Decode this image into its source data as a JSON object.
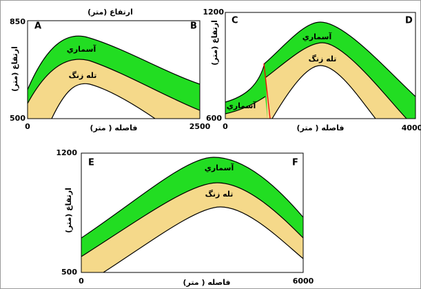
{
  "panels": [
    {
      "title": "ارتفاع (متر)",
      "y_label": "ارتفاع (متر)",
      "x_label": "فاصله ( متر)",
      "y_top": "850",
      "y_bottom": "500",
      "x_left": "0",
      "x_right": "2500",
      "left_corner": "A",
      "right_corner": "B",
      "upper_layer": "آسماري",
      "lower_layer": "تله زنگ"
    },
    {
      "y_label": "ارتفاع (متر)",
      "x_label": "فاصله ( متر)",
      "y_top": "1200",
      "y_bottom": "600",
      "x_left": "0",
      "x_right": "4000",
      "left_corner": "C",
      "right_corner": "D",
      "upper_layer": "آسماري",
      "lower_layer": "تله زنگ",
      "faulted_layer": "آسماري"
    },
    {
      "y_label": "ارتفاع (متر)",
      "x_label": "فاصله ( متر)",
      "y_top": "1200",
      "y_bottom": "500",
      "x_left": "0",
      "x_right": "6000",
      "left_corner": "E",
      "right_corner": "F",
      "upper_layer": "آسماري",
      "lower_layer": "تله زنگ"
    }
  ]
}
